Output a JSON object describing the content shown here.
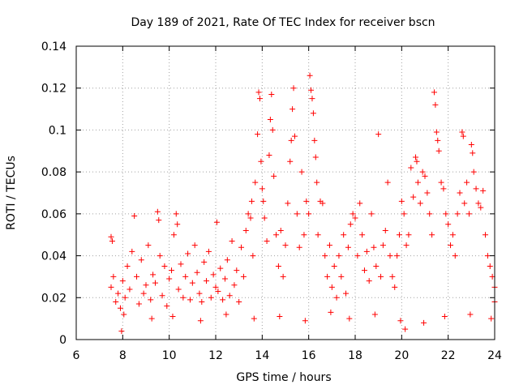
{
  "chart_data": {
    "type": "scatter",
    "title": "Day 189 of 2021, Rate Of TEC Index for receiver bscn",
    "xlabel": "GPS time / hours",
    "ylabel": "ROTI / TECUs",
    "xlim": [
      6,
      24
    ],
    "ylim": [
      0,
      0.14
    ],
    "xticks": [
      6,
      8,
      10,
      12,
      14,
      16,
      18,
      20,
      22,
      24
    ],
    "xtick_labels": [
      "6",
      "8",
      "10",
      "12",
      "14",
      "16",
      "18",
      "20",
      "22",
      "24"
    ],
    "yticks": [
      0,
      0.02,
      0.04,
      0.06,
      0.08,
      0.1,
      0.12,
      0.14
    ],
    "ytick_labels": [
      "0",
      "0.02",
      "0.04",
      "0.06",
      "0.08",
      "0.1",
      "0.12",
      "0.14"
    ],
    "grid": true,
    "marker": "+",
    "color": "#ff0000",
    "series": [
      {
        "name": "ROTI",
        "points": [
          [
            7.5,
            0.049
          ],
          [
            7.55,
            0.047
          ],
          [
            7.5,
            0.025
          ],
          [
            7.6,
            0.03
          ],
          [
            7.7,
            0.018
          ],
          [
            7.8,
            0.022
          ],
          [
            7.9,
            0.015
          ],
          [
            8.0,
            0.028
          ],
          [
            8.1,
            0.02
          ],
          [
            8.2,
            0.035
          ],
          [
            7.95,
            0.004
          ],
          [
            8.3,
            0.024
          ],
          [
            8.4,
            0.042
          ],
          [
            8.5,
            0.059
          ],
          [
            8.6,
            0.03
          ],
          [
            8.7,
            0.017
          ],
          [
            8.8,
            0.038
          ],
          [
            8.9,
            0.022
          ],
          [
            9.0,
            0.026
          ],
          [
            9.1,
            0.045
          ],
          [
            9.2,
            0.019
          ],
          [
            9.3,
            0.031
          ],
          [
            9.4,
            0.027
          ],
          [
            9.5,
            0.061
          ],
          [
            9.55,
            0.057
          ],
          [
            9.6,
            0.04
          ],
          [
            9.7,
            0.021
          ],
          [
            9.8,
            0.035
          ],
          [
            9.9,
            0.016
          ],
          [
            10.0,
            0.029
          ],
          [
            10.1,
            0.033
          ],
          [
            10.2,
            0.05
          ],
          [
            10.3,
            0.06
          ],
          [
            10.35,
            0.055
          ],
          [
            10.4,
            0.024
          ],
          [
            10.5,
            0.036
          ],
          [
            10.6,
            0.02
          ],
          [
            10.7,
            0.03
          ],
          [
            10.8,
            0.041
          ],
          [
            10.9,
            0.019
          ],
          [
            11.0,
            0.027
          ],
          [
            11.1,
            0.045
          ],
          [
            11.2,
            0.032
          ],
          [
            11.3,
            0.022
          ],
          [
            11.4,
            0.018
          ],
          [
            11.5,
            0.037
          ],
          [
            11.6,
            0.028
          ],
          [
            11.7,
            0.042
          ],
          [
            11.8,
            0.02
          ],
          [
            11.9,
            0.031
          ],
          [
            12.0,
            0.025
          ],
          [
            12.05,
            0.056
          ],
          [
            12.1,
            0.023
          ],
          [
            12.2,
            0.034
          ],
          [
            12.3,
            0.019
          ],
          [
            12.4,
            0.029
          ],
          [
            12.5,
            0.038
          ],
          [
            12.6,
            0.021
          ],
          [
            12.7,
            0.047
          ],
          [
            12.8,
            0.026
          ],
          [
            12.9,
            0.033
          ],
          [
            13.0,
            0.018
          ],
          [
            13.1,
            0.044
          ],
          [
            13.2,
            0.03
          ],
          [
            13.3,
            0.052
          ],
          [
            13.4,
            0.06
          ],
          [
            13.5,
            0.058
          ],
          [
            13.55,
            0.066
          ],
          [
            13.6,
            0.04
          ],
          [
            13.7,
            0.075
          ],
          [
            13.8,
            0.098
          ],
          [
            13.85,
            0.118
          ],
          [
            13.9,
            0.115
          ],
          [
            13.95,
            0.085
          ],
          [
            14.0,
            0.072
          ],
          [
            14.05,
            0.066
          ],
          [
            14.1,
            0.058
          ],
          [
            14.2,
            0.047
          ],
          [
            14.3,
            0.088
          ],
          [
            14.35,
            0.105
          ],
          [
            14.4,
            0.117
          ],
          [
            14.45,
            0.1
          ],
          [
            14.5,
            0.078
          ],
          [
            14.6,
            0.05
          ],
          [
            14.7,
            0.035
          ],
          [
            14.8,
            0.052
          ],
          [
            14.9,
            0.03
          ],
          [
            15.0,
            0.045
          ],
          [
            15.1,
            0.065
          ],
          [
            15.2,
            0.085
          ],
          [
            15.25,
            0.095
          ],
          [
            15.3,
            0.11
          ],
          [
            15.35,
            0.12
          ],
          [
            15.4,
            0.097
          ],
          [
            15.5,
            0.06
          ],
          [
            15.6,
            0.044
          ],
          [
            15.7,
            0.08
          ],
          [
            15.8,
            0.05
          ],
          [
            15.9,
            0.066
          ],
          [
            16.0,
            0.06
          ],
          [
            16.05,
            0.126
          ],
          [
            16.1,
            0.119
          ],
          [
            16.15,
            0.115
          ],
          [
            16.2,
            0.108
          ],
          [
            16.25,
            0.095
          ],
          [
            16.3,
            0.087
          ],
          [
            16.35,
            0.075
          ],
          [
            16.4,
            0.05
          ],
          [
            16.5,
            0.066
          ],
          [
            16.6,
            0.065
          ],
          [
            16.7,
            0.04
          ],
          [
            16.8,
            0.03
          ],
          [
            16.9,
            0.045
          ],
          [
            17.0,
            0.025
          ],
          [
            17.1,
            0.035
          ],
          [
            17.2,
            0.02
          ],
          [
            17.3,
            0.04
          ],
          [
            17.4,
            0.03
          ],
          [
            17.5,
            0.05
          ],
          [
            17.6,
            0.022
          ],
          [
            17.7,
            0.044
          ],
          [
            17.8,
            0.055
          ],
          [
            17.9,
            0.06
          ],
          [
            18.0,
            0.058
          ],
          [
            18.1,
            0.04
          ],
          [
            18.2,
            0.065
          ],
          [
            18.3,
            0.05
          ],
          [
            18.4,
            0.033
          ],
          [
            18.5,
            0.042
          ],
          [
            18.6,
            0.028
          ],
          [
            18.7,
            0.06
          ],
          [
            18.8,
            0.044
          ],
          [
            18.9,
            0.035
          ],
          [
            19.0,
            0.098
          ],
          [
            19.1,
            0.03
          ],
          [
            19.2,
            0.045
          ],
          [
            19.3,
            0.052
          ],
          [
            19.4,
            0.075
          ],
          [
            19.5,
            0.04
          ],
          [
            19.6,
            0.03
          ],
          [
            19.7,
            0.025
          ],
          [
            19.8,
            0.04
          ],
          [
            19.9,
            0.05
          ],
          [
            20.0,
            0.066
          ],
          [
            20.1,
            0.06
          ],
          [
            20.2,
            0.045
          ],
          [
            20.3,
            0.05
          ],
          [
            20.4,
            0.082
          ],
          [
            20.5,
            0.068
          ],
          [
            20.6,
            0.087
          ],
          [
            20.65,
            0.085
          ],
          [
            20.7,
            0.075
          ],
          [
            20.8,
            0.065
          ],
          [
            20.9,
            0.08
          ],
          [
            21.0,
            0.078
          ],
          [
            21.1,
            0.07
          ],
          [
            21.2,
            0.06
          ],
          [
            21.3,
            0.05
          ],
          [
            21.4,
            0.118
          ],
          [
            21.45,
            0.112
          ],
          [
            21.5,
            0.099
          ],
          [
            21.55,
            0.095
          ],
          [
            21.6,
            0.09
          ],
          [
            21.7,
            0.075
          ],
          [
            21.8,
            0.072
          ],
          [
            21.9,
            0.06
          ],
          [
            22.0,
            0.055
          ],
          [
            22.1,
            0.045
          ],
          [
            22.2,
            0.05
          ],
          [
            22.3,
            0.04
          ],
          [
            22.4,
            0.06
          ],
          [
            22.5,
            0.07
          ],
          [
            22.6,
            0.099
          ],
          [
            22.65,
            0.097
          ],
          [
            22.7,
            0.065
          ],
          [
            22.8,
            0.075
          ],
          [
            22.9,
            0.06
          ],
          [
            23.0,
            0.093
          ],
          [
            23.05,
            0.089
          ],
          [
            23.1,
            0.08
          ],
          [
            23.2,
            0.072
          ],
          [
            23.3,
            0.065
          ],
          [
            23.4,
            0.063
          ],
          [
            23.5,
            0.071
          ],
          [
            23.6,
            0.05
          ],
          [
            23.7,
            0.04
          ],
          [
            23.8,
            0.035
          ],
          [
            23.9,
            0.03
          ],
          [
            24.0,
            0.025
          ],
          [
            24.0,
            0.018
          ],
          [
            8.05,
            0.012
          ],
          [
            9.25,
            0.01
          ],
          [
            10.15,
            0.011
          ],
          [
            11.35,
            0.009
          ],
          [
            12.45,
            0.012
          ],
          [
            13.65,
            0.01
          ],
          [
            14.75,
            0.011
          ],
          [
            15.85,
            0.009
          ],
          [
            16.95,
            0.013
          ],
          [
            17.75,
            0.01
          ],
          [
            18.85,
            0.012
          ],
          [
            19.95,
            0.009
          ],
          [
            20.15,
            0.005
          ],
          [
            20.95,
            0.008
          ],
          [
            21.85,
            0.011
          ],
          [
            22.95,
            0.012
          ],
          [
            23.85,
            0.01
          ]
        ]
      }
    ]
  }
}
